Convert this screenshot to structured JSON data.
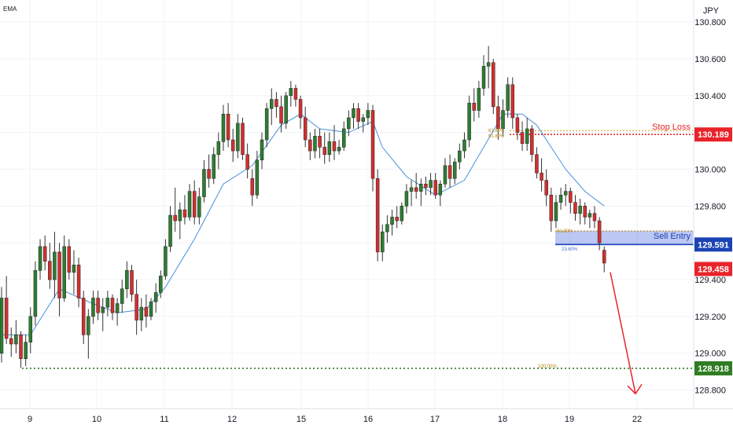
{
  "chart_data": {
    "type": "candlestick",
    "indicator_label": "EMA",
    "currency_label": "JPY",
    "y_axis": {
      "ylim": [
        128.7,
        130.92
      ],
      "ticks": [
        "130.800",
        "130.600",
        "130.400",
        "130.200",
        "130.000",
        "129.800",
        "129.600",
        "129.400",
        "129.200",
        "129.000",
        "128.800"
      ],
      "tick_values": [
        130.8,
        130.6,
        130.4,
        130.2,
        130.0,
        129.8,
        129.6,
        129.4,
        129.2,
        129.0,
        128.8
      ]
    },
    "x_axis": {
      "ticks": [
        "9",
        "10",
        "11",
        "12",
        "15",
        "16",
        "17",
        "18",
        "19",
        "22"
      ]
    },
    "price_labels": [
      {
        "text": "130.189",
        "value": 130.189,
        "color": "#e8242a"
      },
      {
        "text": "129.591",
        "value": 129.591,
        "color": "#1a44b3"
      },
      {
        "text": "129.458",
        "value": 129.458,
        "color": "#e8242a"
      },
      {
        "text": "128.918",
        "value": 128.918,
        "color": "#2f7d22"
      }
    ],
    "annotations": {
      "stop_loss": "Stop Loss",
      "sell_entry": "Sell Entry",
      "fib_stop_a": "61.80%",
      "fib_stop_b": "61.80%",
      "fib_entry_a": "61.80%",
      "fib_entry_b": "23.60%",
      "fib_target": "100.00%"
    },
    "colors": {
      "up": "#2e7d32",
      "down": "#d32f2f",
      "ema": "#4a90d9"
    },
    "candles": [
      [
        129.0,
        129.36,
        128.95,
        129.3
      ],
      [
        129.3,
        129.42,
        129.05,
        129.08
      ],
      [
        129.08,
        129.14,
        128.98,
        129.05
      ],
      [
        129.05,
        129.18,
        129.0,
        129.1
      ],
      [
        129.1,
        129.12,
        128.92,
        128.97
      ],
      [
        128.97,
        129.1,
        128.93,
        129.06
      ],
      [
        129.06,
        129.25,
        129.0,
        129.2
      ],
      [
        129.2,
        129.5,
        129.15,
        129.45
      ],
      [
        129.45,
        129.62,
        129.4,
        129.58
      ],
      [
        129.58,
        129.64,
        129.45,
        129.5
      ],
      [
        129.5,
        129.6,
        129.35,
        129.4
      ],
      [
        129.4,
        129.66,
        129.3,
        129.55
      ],
      [
        129.55,
        129.6,
        129.2,
        129.3
      ],
      [
        129.3,
        129.64,
        129.28,
        129.58
      ],
      [
        129.58,
        129.62,
        129.4,
        129.44
      ],
      [
        129.44,
        129.56,
        129.32,
        129.48
      ],
      [
        129.48,
        129.52,
        129.25,
        129.3
      ],
      [
        129.3,
        129.34,
        129.05,
        129.1
      ],
      [
        129.1,
        129.24,
        128.97,
        129.2
      ],
      [
        129.2,
        129.34,
        129.16,
        129.3
      ],
      [
        129.3,
        129.34,
        129.18,
        129.22
      ],
      [
        129.22,
        129.3,
        129.12,
        129.25
      ],
      [
        129.25,
        129.34,
        129.2,
        129.3
      ],
      [
        129.3,
        129.32,
        129.18,
        129.22
      ],
      [
        129.22,
        129.3,
        129.15,
        129.27
      ],
      [
        129.27,
        129.4,
        129.22,
        129.35
      ],
      [
        129.35,
        129.5,
        129.3,
        129.45
      ],
      [
        129.45,
        129.48,
        129.28,
        129.32
      ],
      [
        129.32,
        129.4,
        129.1,
        129.18
      ],
      [
        129.18,
        129.3,
        129.12,
        129.25
      ],
      [
        129.25,
        129.32,
        129.14,
        129.2
      ],
      [
        129.2,
        129.3,
        129.18,
        129.28
      ],
      [
        129.28,
        129.38,
        129.22,
        129.33
      ],
      [
        129.33,
        129.45,
        129.3,
        129.42
      ],
      [
        129.42,
        129.62,
        129.4,
        129.58
      ],
      [
        129.58,
        129.8,
        129.55,
        129.75
      ],
      [
        129.75,
        129.9,
        129.66,
        129.72
      ],
      [
        129.72,
        129.82,
        129.62,
        129.78
      ],
      [
        129.78,
        129.86,
        129.7,
        129.74
      ],
      [
        129.74,
        129.92,
        129.72,
        129.88
      ],
      [
        129.88,
        129.94,
        129.7,
        129.74
      ],
      [
        129.74,
        129.9,
        129.7,
        129.85
      ],
      [
        129.85,
        130.05,
        129.82,
        130.0
      ],
      [
        130.0,
        130.08,
        129.9,
        129.95
      ],
      [
        129.95,
        130.12,
        129.92,
        130.08
      ],
      [
        130.08,
        130.2,
        130.0,
        130.15
      ],
      [
        130.15,
        130.35,
        130.1,
        130.3
      ],
      [
        130.3,
        130.36,
        130.12,
        130.16
      ],
      [
        130.16,
        130.22,
        130.04,
        130.1
      ],
      [
        130.1,
        130.3,
        130.06,
        130.25
      ],
      [
        130.25,
        130.28,
        130.05,
        130.08
      ],
      [
        130.08,
        130.14,
        129.95,
        130.0
      ],
      [
        129.95,
        130.0,
        129.8,
        129.86
      ],
      [
        129.86,
        130.1,
        129.84,
        130.05
      ],
      [
        130.05,
        130.2,
        130.0,
        130.16
      ],
      [
        130.16,
        130.36,
        130.12,
        130.33
      ],
      [
        130.33,
        130.44,
        130.24,
        130.38
      ],
      [
        130.38,
        130.42,
        130.28,
        130.34
      ],
      [
        130.34,
        130.4,
        130.2,
        130.25
      ],
      [
        130.25,
        130.42,
        130.22,
        130.4
      ],
      [
        130.4,
        130.48,
        130.34,
        130.44
      ],
      [
        130.44,
        130.46,
        130.34,
        130.38
      ],
      [
        130.38,
        130.4,
        130.22,
        130.28
      ],
      [
        130.28,
        130.34,
        130.12,
        130.16
      ],
      [
        130.16,
        130.2,
        130.05,
        130.1
      ],
      [
        130.1,
        130.22,
        130.06,
        130.18
      ],
      [
        130.18,
        130.22,
        130.06,
        130.12
      ],
      [
        130.12,
        130.2,
        130.03,
        130.08
      ],
      [
        130.08,
        130.2,
        130.04,
        130.15
      ],
      [
        130.15,
        130.24,
        130.05,
        130.1
      ],
      [
        130.1,
        130.16,
        130.08,
        130.12
      ],
      [
        130.12,
        130.26,
        130.1,
        130.22
      ],
      [
        130.22,
        130.32,
        130.18,
        130.28
      ],
      [
        130.28,
        130.36,
        130.22,
        130.33
      ],
      [
        130.33,
        130.36,
        130.22,
        130.26
      ],
      [
        130.26,
        130.3,
        130.2,
        130.28
      ],
      [
        130.28,
        130.36,
        130.24,
        130.32
      ],
      [
        130.32,
        130.35,
        129.88,
        129.95
      ],
      [
        129.95,
        130.0,
        129.5,
        129.55
      ],
      [
        129.55,
        129.7,
        129.5,
        129.66
      ],
      [
        129.66,
        129.75,
        129.6,
        129.7
      ],
      [
        129.7,
        129.78,
        129.64,
        129.74
      ],
      [
        129.74,
        129.8,
        129.68,
        129.72
      ],
      [
        129.72,
        129.82,
        129.7,
        129.8
      ],
      [
        129.8,
        129.92,
        129.76,
        129.88
      ],
      [
        129.88,
        129.94,
        129.8,
        129.9
      ],
      [
        129.9,
        129.98,
        129.84,
        129.88
      ],
      [
        129.88,
        129.95,
        129.8,
        129.92
      ],
      [
        129.92,
        129.96,
        129.86,
        129.9
      ],
      [
        129.9,
        129.98,
        129.86,
        129.94
      ],
      [
        129.94,
        129.98,
        129.84,
        129.86
      ],
      [
        129.86,
        129.94,
        129.8,
        129.92
      ],
      [
        129.92,
        130.06,
        129.9,
        130.02
      ],
      [
        130.02,
        130.08,
        129.9,
        129.95
      ],
      [
        129.95,
        130.06,
        129.92,
        130.04
      ],
      [
        130.04,
        130.14,
        130.0,
        130.1
      ],
      [
        130.1,
        130.2,
        130.06,
        130.16
      ],
      [
        130.16,
        130.4,
        130.12,
        130.36
      ],
      [
        130.36,
        130.44,
        130.26,
        130.32
      ],
      [
        130.32,
        130.48,
        130.28,
        130.44
      ],
      [
        130.44,
        130.62,
        130.4,
        130.56
      ],
      [
        130.56,
        130.67,
        130.44,
        130.58
      ],
      [
        130.58,
        130.6,
        130.3,
        130.34
      ],
      [
        130.34,
        130.4,
        130.16,
        130.22
      ],
      [
        130.22,
        130.38,
        130.18,
        130.32
      ],
      [
        130.32,
        130.5,
        130.28,
        130.46
      ],
      [
        130.46,
        130.5,
        130.22,
        130.28
      ],
      [
        130.28,
        130.3,
        130.16,
        130.2
      ],
      [
        130.2,
        130.26,
        130.1,
        130.14
      ],
      [
        130.14,
        130.28,
        130.1,
        130.22
      ],
      [
        130.22,
        130.24,
        130.04,
        130.08
      ],
      [
        130.08,
        130.12,
        129.95,
        129.98
      ],
      [
        129.98,
        130.06,
        129.88,
        129.94
      ],
      [
        129.94,
        130.0,
        129.8,
        129.86
      ],
      [
        129.86,
        129.9,
        129.66,
        129.72
      ],
      [
        129.72,
        129.86,
        129.68,
        129.82
      ],
      [
        129.82,
        129.9,
        129.78,
        129.86
      ],
      [
        129.86,
        129.92,
        129.8,
        129.88
      ],
      [
        129.88,
        129.9,
        129.76,
        129.82
      ],
      [
        129.82,
        129.86,
        129.72,
        129.76
      ],
      [
        129.76,
        129.84,
        129.7,
        129.8
      ],
      [
        129.8,
        129.82,
        129.7,
        129.74
      ],
      [
        129.74,
        129.78,
        129.68,
        129.76
      ],
      [
        129.76,
        129.8,
        129.68,
        129.72
      ],
      [
        129.72,
        129.74,
        129.56,
        129.6
      ],
      [
        129.56,
        129.58,
        129.44,
        129.49
      ]
    ],
    "ema": [
      [
        0,
        129.1
      ],
      [
        6,
        129.1
      ],
      [
        12,
        129.35
      ],
      [
        18,
        129.28
      ],
      [
        24,
        129.22
      ],
      [
        30,
        129.24
      ],
      [
        34,
        129.36
      ],
      [
        40,
        129.62
      ],
      [
        46,
        129.92
      ],
      [
        52,
        130.02
      ],
      [
        58,
        130.24
      ],
      [
        62,
        130.3
      ],
      [
        66,
        130.22
      ],
      [
        72,
        130.2
      ],
      [
        77,
        130.26
      ],
      [
        79,
        130.12
      ],
      [
        84,
        129.96
      ],
      [
        90,
        129.86
      ],
      [
        96,
        129.94
      ],
      [
        100,
        130.12
      ],
      [
        104,
        130.3
      ],
      [
        108,
        130.3
      ],
      [
        111,
        130.24
      ],
      [
        114,
        130.12
      ],
      [
        117,
        130.0
      ],
      [
        121,
        129.88
      ],
      [
        125,
        129.8
      ]
    ],
    "trade_levels": {
      "stop_loss": 130.189,
      "stop_loss_upper": 130.21,
      "sell_zone_top": 129.665,
      "sell_zone_bottom": 129.591,
      "take_profit": 128.918
    },
    "projection": {
      "from": 129.44,
      "to": 128.78
    }
  }
}
